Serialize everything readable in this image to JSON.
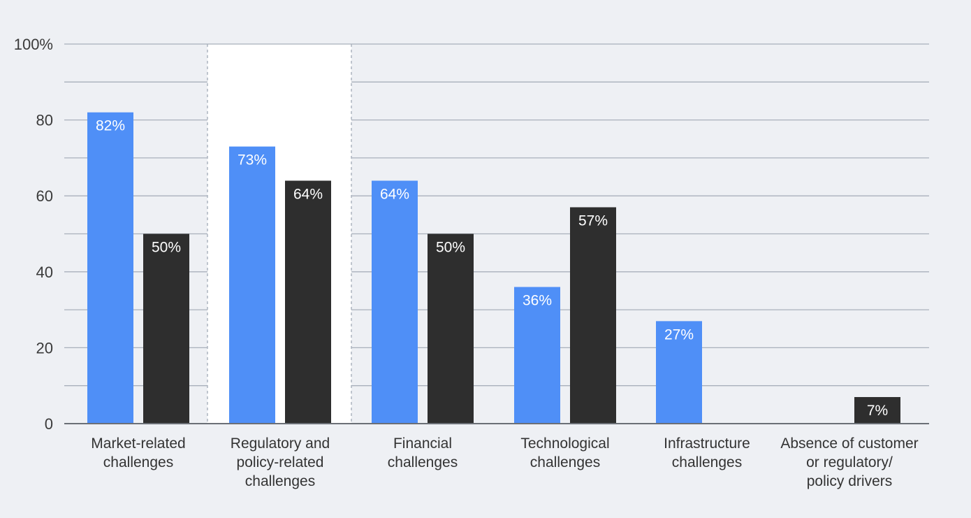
{
  "chart_data": {
    "type": "bar",
    "categories": [
      [
        "Market-related",
        "challenges"
      ],
      [
        "Regulatory and",
        "policy-related",
        "challenges"
      ],
      [
        "Financial",
        "challenges"
      ],
      [
        "Technological",
        "challenges"
      ],
      [
        "Infrastructure",
        "challenges"
      ],
      [
        "Absence of customer",
        "or regulatory/",
        "policy drivers"
      ]
    ],
    "series": [
      {
        "color": "#4f8ff7",
        "values": [
          82,
          73,
          64,
          36,
          27,
          null
        ],
        "labels": [
          "82%",
          "73%",
          "64%",
          "36%",
          "27%",
          ""
        ]
      },
      {
        "color": "#2e2e2e",
        "values": [
          50,
          64,
          50,
          57,
          null,
          7
        ],
        "labels": [
          "50%",
          "64%",
          "50%",
          "57%",
          "",
          "7%"
        ]
      }
    ],
    "y_ticks": [
      {
        "value": 0,
        "label": "0"
      },
      {
        "value": 20,
        "label": "20"
      },
      {
        "value": 40,
        "label": "40"
      },
      {
        "value": 60,
        "label": "60"
      },
      {
        "value": 80,
        "label": "80"
      },
      {
        "value": 100,
        "label": "100%"
      }
    ],
    "ylim": [
      0,
      100
    ],
    "minor_grid_step": 10,
    "highlighted_category": 1,
    "title": "",
    "xlabel": "",
    "ylabel": "",
    "grid": true,
    "legend": "none"
  }
}
